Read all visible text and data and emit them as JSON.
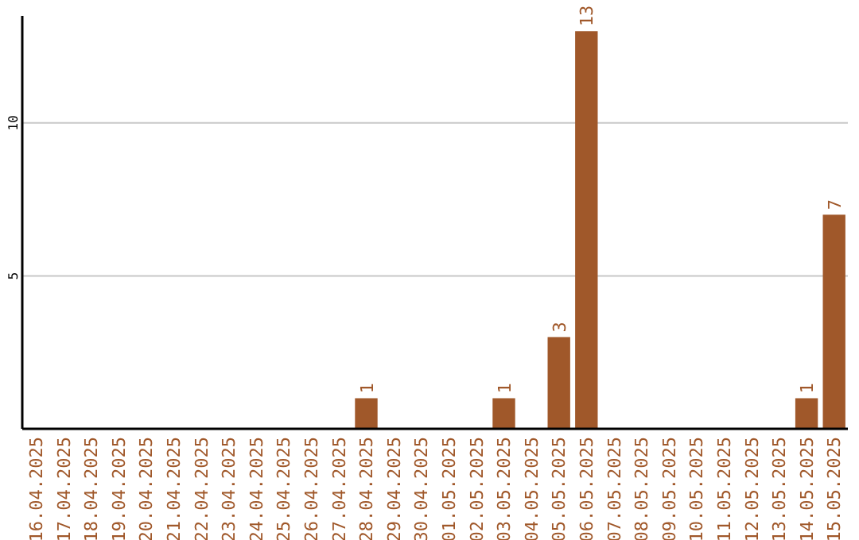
{
  "chart_data": {
    "type": "bar",
    "categories": [
      "16.04.2025",
      "17.04.2025",
      "18.04.2025",
      "19.04.2025",
      "20.04.2025",
      "21.04.2025",
      "22.04.2025",
      "23.04.2025",
      "24.04.2025",
      "25.04.2025",
      "26.04.2025",
      "27.04.2025",
      "28.04.2025",
      "29.04.2025",
      "30.04.2025",
      "01.05.2025",
      "02.05.2025",
      "03.05.2025",
      "04.05.2025",
      "05.05.2025",
      "06.05.2025",
      "07.05.2025",
      "08.05.2025",
      "09.05.2025",
      "10.05.2025",
      "11.05.2025",
      "12.05.2025",
      "13.05.2025",
      "14.05.2025",
      "15.05.2025"
    ],
    "values": [
      0,
      0,
      0,
      0,
      0,
      0,
      0,
      0,
      0,
      0,
      0,
      0,
      1,
      0,
      0,
      0,
      0,
      1,
      0,
      3,
      13,
      0,
      0,
      0,
      0,
      0,
      0,
      0,
      1,
      7
    ],
    "value_labels": [
      null,
      null,
      null,
      null,
      null,
      null,
      null,
      null,
      null,
      null,
      null,
      null,
      "1",
      null,
      null,
      null,
      null,
      "1",
      null,
      "3",
      "13",
      null,
      null,
      null,
      null,
      null,
      null,
      null,
      "1",
      "7"
    ],
    "color": "#a0582a",
    "ylim": [
      0,
      13.5
    ],
    "yticks": [
      5,
      10
    ],
    "grid": "y"
  }
}
